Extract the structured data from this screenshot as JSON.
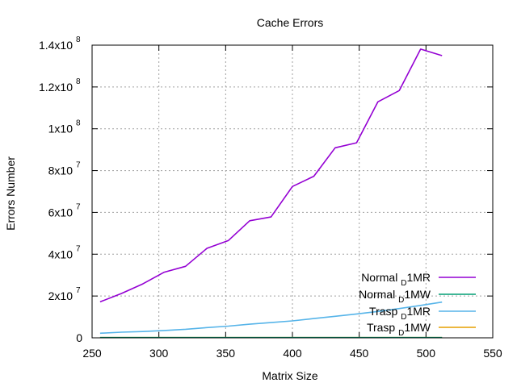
{
  "chart_data": {
    "type": "line",
    "title": "Cache Errors",
    "xlabel": "Matrix Size",
    "ylabel": "Errors Number",
    "xlim": [
      250,
      550
    ],
    "ylim": [
      0,
      140000000
    ],
    "x_ticks": [
      250,
      300,
      350,
      400,
      450,
      500,
      550
    ],
    "y_ticks": [
      {
        "value": 0,
        "mantissa": "0",
        "exp": ""
      },
      {
        "value": 20000000,
        "mantissa": "2x10",
        "exp": "7"
      },
      {
        "value": 40000000,
        "mantissa": "4x10",
        "exp": "7"
      },
      {
        "value": 60000000,
        "mantissa": "6x10",
        "exp": "7"
      },
      {
        "value": 80000000,
        "mantissa": "8x10",
        "exp": "7"
      },
      {
        "value": 100000000,
        "mantissa": "1x10",
        "exp": "8"
      },
      {
        "value": 120000000,
        "mantissa": "1.2x10",
        "exp": "8"
      },
      {
        "value": 140000000,
        "mantissa": "1.4x10",
        "exp": "8"
      }
    ],
    "grid": true,
    "legend_position": "bottom-right",
    "x": [
      256,
      272,
      288,
      304,
      320,
      336,
      352,
      368,
      384,
      400,
      416,
      432,
      448,
      464,
      480,
      496,
      512
    ],
    "series": [
      {
        "name_pre": "Normal",
        "name_sub": "D",
        "name_post": "1MR",
        "color": "#9400d3",
        "values": [
          17200000,
          21200000,
          25800000,
          31400000,
          34200000,
          42800000,
          46500000,
          56000000,
          57800000,
          72400000,
          77300000,
          90900000,
          93300000,
          112900000,
          118300000,
          138100000,
          135000000
        ]
      },
      {
        "name_pre": "Normal",
        "name_sub": "D",
        "name_post": "1MW",
        "color": "#009e73",
        "values": [
          100000,
          100000,
          100000,
          100000,
          100000,
          100000,
          100000,
          100000,
          100000,
          100000,
          100000,
          100000,
          100000,
          100000,
          100000,
          100000,
          100000
        ]
      },
      {
        "name_pre": "Trasp",
        "name_sub": "D",
        "name_post": "1MR",
        "color": "#56b4e9",
        "values": [
          2200000,
          2700000,
          3000000,
          3500000,
          4100000,
          4900000,
          5600000,
          6500000,
          7300000,
          8100000,
          9200000,
          10300000,
          11400000,
          12600000,
          14000000,
          15500000,
          17100000
        ]
      },
      {
        "name_pre": "Trasp",
        "name_sub": "D",
        "name_post": "1MW",
        "color": "#e69f00",
        "values": [
          100000,
          100000,
          100000,
          100000,
          100000,
          100000,
          100000,
          100000,
          100000,
          100000,
          100000,
          100000,
          100000,
          100000,
          100000,
          100000,
          100000
        ]
      }
    ]
  }
}
